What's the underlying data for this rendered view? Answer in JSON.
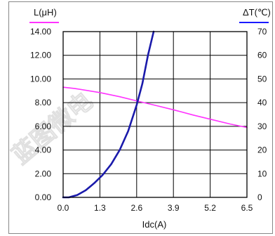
{
  "chart_data": {
    "type": "line",
    "xlabel": "Idc(A)",
    "x_ticks": [
      "0.0",
      "1.3",
      "2.6",
      "3.9",
      "5.2",
      "6.5"
    ],
    "xlim": [
      0,
      6.5
    ],
    "left_axis": {
      "label": "L(μH)",
      "label_color": "#ff33ff",
      "ylim": [
        0,
        14
      ],
      "ticks": [
        "0.00",
        "2.00",
        "4.00",
        "6.00",
        "8.00",
        "10.00",
        "12.00",
        "14.00"
      ]
    },
    "right_axis": {
      "label": "ΔT(℃)",
      "label_color": "#1a1aff",
      "ylim": [
        0,
        70
      ],
      "ticks": [
        "0",
        "10",
        "20",
        "30",
        "40",
        "50",
        "60",
        "70"
      ]
    },
    "grid": true,
    "series": [
      {
        "axis": "left",
        "color": "#ff33ff",
        "x": [
          0.0,
          0.4,
          1.3,
          2.0,
          2.6,
          3.3,
          3.9,
          4.6,
          5.2,
          5.9,
          6.5
        ],
        "y": [
          9.3,
          9.2,
          8.85,
          8.5,
          8.15,
          7.75,
          7.4,
          6.95,
          6.6,
          6.2,
          5.9
        ]
      },
      {
        "axis": "right",
        "color": "#1a1aab",
        "x": [
          0.0,
          0.2,
          0.5,
          0.8,
          1.1,
          1.4,
          1.7,
          2.0,
          2.3,
          2.6,
          2.8,
          3.0,
          3.2
        ],
        "y": [
          0,
          0,
          1,
          3,
          6,
          9.5,
          14,
          20,
          28,
          39,
          48,
          60,
          70
        ]
      }
    ]
  },
  "watermark": "蓝图微电"
}
